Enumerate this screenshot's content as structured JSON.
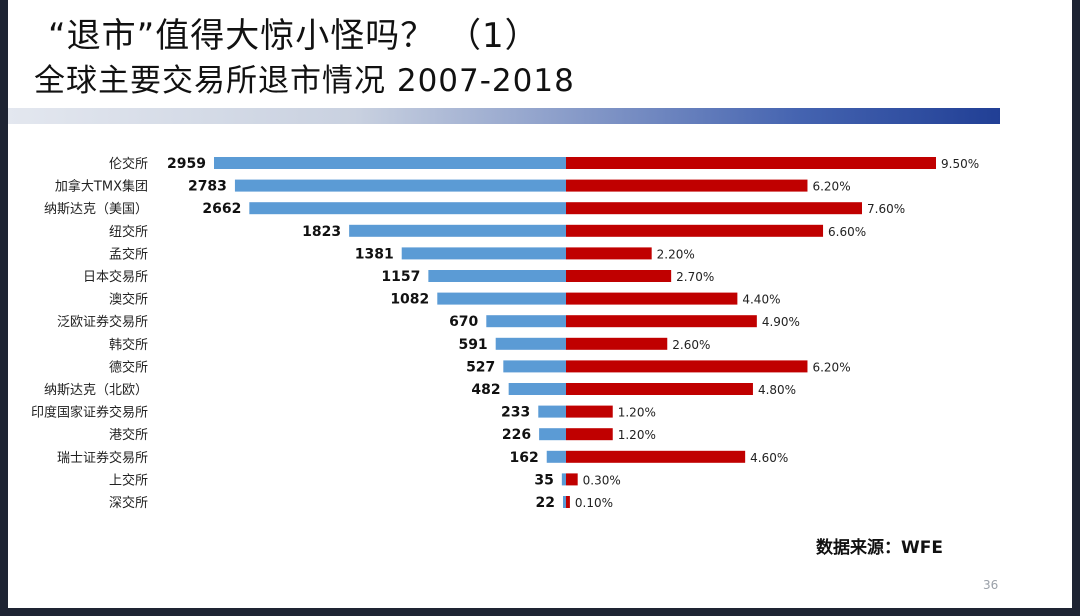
{
  "slide": {
    "title_line1": "“退市”值得大惊小怪吗？ （1）",
    "title_line2": "全球主要交易所退市情况 2007-2018",
    "source": "数据来源：WFE",
    "page_number": "36"
  },
  "colors": {
    "left_bar": "#5b9bd5",
    "right_bar": "#c00000",
    "header_bar_dark": "#213f95"
  },
  "chart_data": {
    "type": "bar",
    "orientation": "horizontal-butterfly",
    "categories": [
      "伦交所",
      "加拿大TMX集团",
      "纳斯达克（美国）",
      "纽交所",
      "孟交所",
      "日本交易所",
      "澳交所",
      "泛欧证券交易所",
      "韩交所",
      "德交所",
      "纳斯达克（北欧）",
      "印度国家证券交易所",
      "港交所",
      "瑞士证券交易所",
      "上交所",
      "深交所"
    ],
    "series": [
      {
        "values": [
          2959,
          2783,
          2662,
          1823,
          1381,
          1157,
          1082,
          670,
          591,
          527,
          482,
          233,
          226,
          162,
          35,
          22
        ],
        "side": "left"
      },
      {
        "values": [
          9.5,
          6.2,
          7.6,
          6.6,
          2.2,
          2.7,
          4.4,
          4.9,
          2.6,
          6.2,
          4.8,
          1.2,
          1.2,
          4.6,
          0.3,
          0.1
        ],
        "labels": [
          "9.50%",
          "6.20%",
          "7.60%",
          "6.60%",
          "2.20%",
          "2.70%",
          "4.40%",
          "4.90%",
          "2.60%",
          "6.20%",
          "4.80%",
          "1.20%",
          "1.20%",
          "4.60%",
          "0.30%",
          "0.10%"
        ],
        "side": "right"
      }
    ],
    "left_max": 2959,
    "right_max": 9.5,
    "grid": false,
    "legend": "none"
  }
}
